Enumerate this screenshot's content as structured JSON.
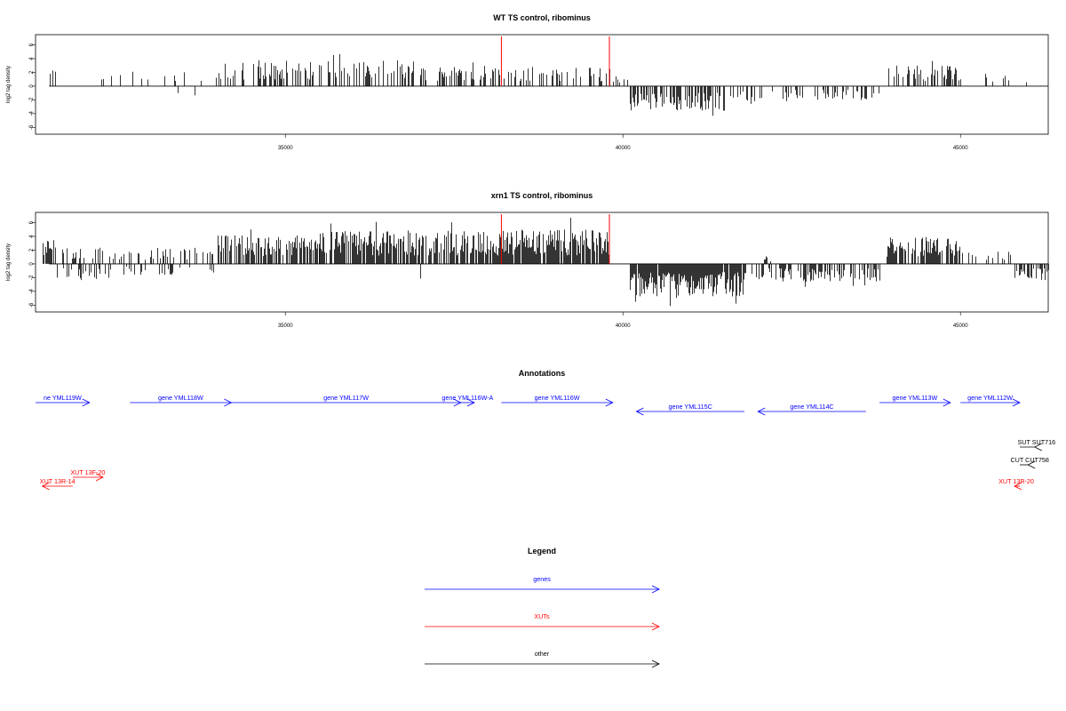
{
  "colors": {
    "genes": "#0000ff",
    "xuts": "#ff0000",
    "other": "#000000",
    "bars": "#000000",
    "marker": "#ff0000"
  },
  "chart_data": [
    {
      "type": "bar",
      "title": "WT TS control, ribominus",
      "ylabel": "log2 tag density",
      "xlim": [
        31300,
        46300
      ],
      "ylim": [
        -7,
        7.5
      ],
      "x_ticks": [
        35000,
        40000,
        45000
      ],
      "x_tick_labels": [
        "35000",
        "40000",
        "45000"
      ],
      "y_ticks": [
        6,
        4,
        2,
        0,
        -2,
        -4,
        -6
      ],
      "y_tick_labels": [
        "6",
        "4",
        "2",
        "0",
        "-2",
        "-4",
        "-6"
      ],
      "markers_x": [
        38200,
        39800
      ],
      "profile": [
        {
          "from": 31500,
          "to": 31600,
          "value": 2.5,
          "fill": 0.6
        },
        {
          "from": 31700,
          "to": 32200,
          "value": -1.5,
          "fill": 0.04
        },
        {
          "from": 32200,
          "to": 34000,
          "value": 2.2,
          "fill": 0.12
        },
        {
          "from": 33400,
          "to": 34000,
          "value": -1.8,
          "fill": 0.04
        },
        {
          "from": 34000,
          "to": 37000,
          "value": 3.8,
          "fill": 0.45
        },
        {
          "from": 37000,
          "to": 38200,
          "value": 3.2,
          "fill": 0.3
        },
        {
          "from": 38200,
          "to": 39800,
          "value": 2.8,
          "fill": 0.4
        },
        {
          "from": 39800,
          "to": 40100,
          "value": 1.5,
          "fill": 0.1
        },
        {
          "from": 40100,
          "to": 41500,
          "value": -3.6,
          "fill": 0.6
        },
        {
          "from": 41500,
          "to": 43600,
          "value": -2.2,
          "fill": 0.3
        },
        {
          "from": 43600,
          "to": 43800,
          "value": -2.8,
          "fill": 0.1
        },
        {
          "from": 43900,
          "to": 45000,
          "value": 3.0,
          "fill": 0.4
        },
        {
          "from": 45300,
          "to": 46000,
          "value": 1.8,
          "fill": 0.1
        },
        {
          "from": 45900,
          "to": 46100,
          "value": -1.0,
          "fill": 0.05
        }
      ]
    },
    {
      "type": "bar",
      "title": "xrn1 TS control, ribominus",
      "ylabel": "log2 tag density",
      "xlim": [
        31300,
        46300
      ],
      "ylim": [
        -7,
        7.5
      ],
      "x_ticks": [
        35000,
        40000,
        45000
      ],
      "x_tick_labels": [
        "35000",
        "40000",
        "45000"
      ],
      "y_ticks": [
        6,
        4,
        2,
        0,
        -2,
        -4,
        -6
      ],
      "y_tick_labels": [
        "6",
        "4",
        "2",
        "0",
        "-2",
        "-4",
        "-6"
      ],
      "markers_x": [
        38200,
        39800
      ],
      "profile": [
        {
          "from": 31400,
          "to": 31600,
          "value": 3.8,
          "fill": 0.8
        },
        {
          "from": 31600,
          "to": 32600,
          "value": -2.4,
          "fill": 0.3
        },
        {
          "from": 31700,
          "to": 34000,
          "value": 2.4,
          "fill": 0.3
        },
        {
          "from": 32600,
          "to": 34000,
          "value": -1.6,
          "fill": 0.15
        },
        {
          "from": 34000,
          "to": 35500,
          "value": 4.2,
          "fill": 0.7
        },
        {
          "from": 35500,
          "to": 38200,
          "value": 4.8,
          "fill": 0.75
        },
        {
          "from": 37000,
          "to": 37300,
          "value": -2.8,
          "fill": 0.05
        },
        {
          "from": 38200,
          "to": 39800,
          "value": 5.0,
          "fill": 0.9
        },
        {
          "from": 40100,
          "to": 41800,
          "value": -4.8,
          "fill": 0.95
        },
        {
          "from": 41800,
          "to": 43800,
          "value": -2.6,
          "fill": 0.5
        },
        {
          "from": 42000,
          "to": 42200,
          "value": 1.2,
          "fill": 0.2
        },
        {
          "from": 43900,
          "to": 45000,
          "value": 4.0,
          "fill": 0.7
        },
        {
          "from": 45000,
          "to": 45800,
          "value": 2.0,
          "fill": 0.3
        },
        {
          "from": 45800,
          "to": 46300,
          "value": -2.5,
          "fill": 0.6
        }
      ]
    }
  ],
  "annotations": {
    "title": "Annotations",
    "features": [
      {
        "label": "ne YML119W",
        "from": 31250,
        "to": 32100,
        "strand": "+",
        "class": "genes",
        "row": 0
      },
      {
        "label": "gene YML118W",
        "from": 32700,
        "to": 34200,
        "strand": "+",
        "class": "genes",
        "row": 0
      },
      {
        "label": "gene YML117W",
        "from": 34200,
        "to": 37600,
        "strand": "+",
        "class": "genes",
        "row": 0
      },
      {
        "label": "gene YML116W-A",
        "from": 37600,
        "to": 37800,
        "strand": "+",
        "class": "genes",
        "row": 0
      },
      {
        "label": "gene YML116W",
        "from": 38200,
        "to": 39850,
        "strand": "+",
        "class": "genes",
        "row": 0
      },
      {
        "label": "gene YML115C",
        "from": 40200,
        "to": 41800,
        "strand": "-",
        "class": "genes",
        "row": 1
      },
      {
        "label": "gene YML114C",
        "from": 42000,
        "to": 43600,
        "strand": "-",
        "class": "genes",
        "row": 1
      },
      {
        "label": "gene YML113W",
        "from": 43800,
        "to": 44850,
        "strand": "+",
        "class": "genes",
        "row": 0
      },
      {
        "label": "gene YML112W",
        "from": 45000,
        "to": 45900,
        "strand": "+",
        "class": "genes",
        "row": 0
      },
      {
        "label": "SUT SUT716",
        "from": 46100,
        "to": 46600,
        "strand": "-",
        "class": "other",
        "row": 5
      },
      {
        "label": "CUT CUT758",
        "from": 46000,
        "to": 46200,
        "strand": "-",
        "class": "other",
        "row": 7
      },
      {
        "label": "XUT 13F-20",
        "from": 31850,
        "to": 32300,
        "strand": "+",
        "class": "xuts",
        "row": 8
      },
      {
        "label": "XUT 13R-14",
        "from": 31400,
        "to": 31850,
        "strand": "-",
        "class": "xuts",
        "row": 9
      },
      {
        "label": "XUT 13R-20",
        "from": 45800,
        "to": 46600,
        "strand": "-",
        "class": "xuts",
        "row": 9
      }
    ]
  },
  "legend": {
    "title": "Legend",
    "items": [
      {
        "label": "genes",
        "class": "genes"
      },
      {
        "label": "XUTs",
        "class": "xuts"
      },
      {
        "label": "other",
        "class": "other"
      }
    ]
  }
}
